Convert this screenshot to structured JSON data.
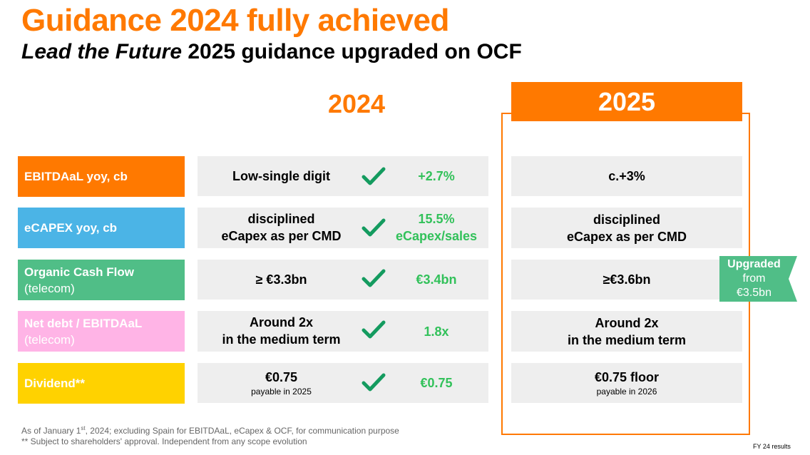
{
  "title": "Guidance 2024 fully achieved",
  "subtitle": {
    "italic": "Lead the Future",
    "rest": " 2025 guidance upgraded on OCF"
  },
  "columns": {
    "year_2024": "2024",
    "year_2025": "2025"
  },
  "colors": {
    "orange": "#ff7900",
    "green_text": "#32c15a",
    "badge_green": "#50be87"
  },
  "rows": [
    {
      "label": "EBITDAaL yoy, cb",
      "label_sub": "",
      "label_color": "#ff7900",
      "label_text_color": "#ffffff",
      "guidance_2024": "Low-single digit",
      "actual_2024": "+2.7%",
      "guidance_2025": "c.+3%"
    },
    {
      "label": "eCAPEX yoy, cb",
      "label_sub": "",
      "label_color": "#4bb4e6",
      "label_text_color": "#ffffff",
      "guidance_2024_l1": "disciplined",
      "guidance_2024_l2": "eCapex as per CMD",
      "actual_2024_l1": "15.5%",
      "actual_2024_l2": "eCapex/sales",
      "guidance_2025_l1": "disciplined",
      "guidance_2025_l2": "eCapex as per CMD"
    },
    {
      "label": "Organic Cash Flow",
      "label_sub": "(telecom)",
      "label_color": "#50be87",
      "label_text_color": "#ffffff",
      "guidance_2024": "≥ €3.3bn",
      "actual_2024": "€3.4bn",
      "guidance_2025": "≥€3.6bn"
    },
    {
      "label": "Net debt / EBITDAaL",
      "label_sub": "(telecom)",
      "label_color": "#ffb4e6",
      "label_text_color": "#ffffff",
      "guidance_2024_l1": "Around 2x",
      "guidance_2024_l2": "in the medium term",
      "actual_2024": "1.8x",
      "guidance_2025_l1": "Around 2x",
      "guidance_2025_l2": "in the medium term"
    },
    {
      "label": "Dividend**",
      "label_sub": "",
      "label_color": "#ffd200",
      "label_text_color": "#ffffff",
      "guidance_2024": "€0.75",
      "guidance_2024_small": "payable in 2025",
      "actual_2024": "€0.75",
      "guidance_2025": "€0.75 floor",
      "guidance_2025_small": "payable in 2026"
    }
  ],
  "badge": {
    "line1": "Upgraded",
    "line2": "from",
    "line3": "€3.5bn"
  },
  "icons": {
    "check": "check-icon"
  },
  "footnotes": {
    "note1_prefix": "As of January 1",
    "note1_sup": "st",
    "note1_rest": ", 2024; excluding Spain for EBITDAaL, eCapex & OCF, for communication purpose",
    "note2": "** Subject to shareholders' approval. Independent from any scope evolution"
  },
  "page_footer": "FY 24 results"
}
